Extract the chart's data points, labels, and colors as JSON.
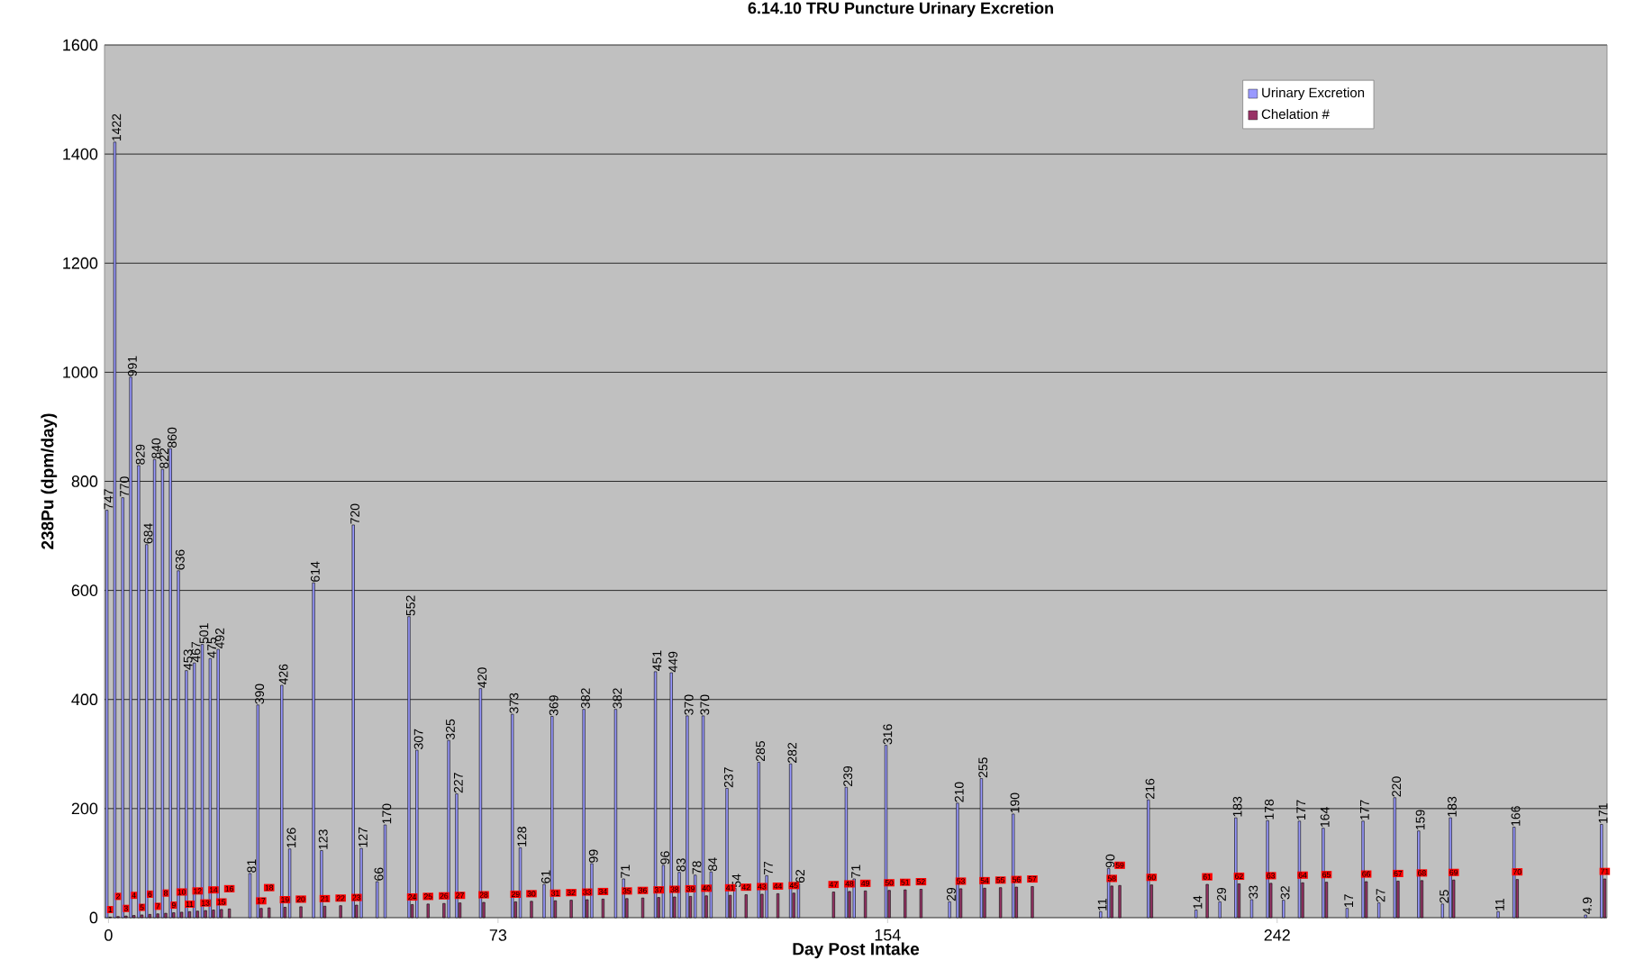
{
  "chart_data": {
    "type": "bar",
    "title": "6.14.10 TRU Puncture Urinary Excretion",
    "xlabel": "Day Post Intake",
    "ylabel": "238Pu (dpm/day)",
    "categories": [
      "0",
      null,
      null,
      null,
      null,
      null,
      null,
      null,
      null,
      null,
      null,
      null,
      null,
      null,
      null,
      null,
      null,
      null,
      null,
      null,
      null,
      null,
      null,
      null,
      null,
      null,
      null,
      null,
      null,
      null,
      null,
      null,
      null,
      null,
      null,
      null,
      null,
      null,
      null,
      null,
      null,
      null,
      null,
      null,
      null,
      null,
      null,
      null,
      null,
      "73",
      null,
      null,
      null,
      null,
      null,
      null,
      null,
      null,
      null,
      null,
      null,
      null,
      null,
      null,
      null,
      null,
      null,
      null,
      null,
      null,
      null,
      null,
      null,
      null,
      null,
      null,
      null,
      null,
      null,
      null,
      null,
      null,
      null,
      null,
      null,
      null,
      null,
      null,
      null,
      null,
      null,
      null,
      null,
      null,
      null,
      null,
      null,
      null,
      "154",
      null,
      null,
      null,
      null,
      null,
      null,
      null,
      null,
      null,
      null,
      null,
      null,
      null,
      null,
      null,
      null,
      null,
      null,
      null,
      null,
      null,
      null,
      null,
      null,
      null,
      null,
      null,
      null,
      null,
      null,
      null,
      null,
      null,
      null,
      null,
      null,
      null,
      null,
      null,
      null,
      null,
      null,
      null,
      null,
      null,
      null,
      null,
      null,
      "242",
      null,
      null,
      null,
      null,
      null,
      null,
      null,
      null,
      null,
      null,
      null,
      null,
      null,
      null,
      null,
      null,
      null,
      null,
      null,
      null,
      null,
      null,
      null,
      null,
      null,
      null,
      null,
      null,
      null,
      null,
      null,
      null,
      null,
      null,
      null,
      null,
      null,
      null,
      null,
      null,
      null
    ],
    "series": [
      {
        "name": "Urinary Excretion",
        "color": "#9999ff",
        "values": [
          747,
          1422,
          770,
          991,
          829,
          684,
          840,
          822,
          860,
          636,
          453,
          467,
          501,
          475,
          492,
          null,
          null,
          null,
          81,
          390,
          null,
          null,
          426,
          126,
          null,
          null,
          614,
          123,
          null,
          null,
          null,
          720,
          127,
          null,
          66,
          170,
          null,
          null,
          552,
          307,
          null,
          null,
          null,
          325,
          227,
          null,
          null,
          420,
          null,
          null,
          null,
          373,
          128,
          null,
          null,
          61,
          369,
          null,
          null,
          null,
          382,
          99,
          null,
          null,
          382,
          71,
          null,
          null,
          null,
          451,
          96,
          449,
          83,
          370,
          78,
          370,
          84,
          null,
          237,
          54,
          null,
          null,
          285,
          77,
          null,
          null,
          282,
          62,
          null,
          null,
          null,
          null,
          null,
          239,
          71,
          null,
          null,
          null,
          316,
          null,
          null,
          null,
          null,
          null,
          null,
          null,
          29,
          210,
          null,
          null,
          255,
          null,
          null,
          null,
          190,
          null,
          null,
          null,
          null,
          null,
          null,
          null,
          null,
          null,
          null,
          11,
          90,
          null,
          null,
          null,
          null,
          216,
          null,
          null,
          null,
          null,
          null,
          14,
          null,
          null,
          29,
          null,
          183,
          null,
          33,
          null,
          178,
          null,
          32,
          null,
          177,
          null,
          null,
          164,
          null,
          null,
          17,
          null,
          177,
          null,
          27,
          null,
          220,
          null,
          null,
          159,
          null,
          null,
          25,
          183,
          null,
          null,
          null,
          null,
          null,
          11,
          null,
          166,
          null,
          null,
          null,
          null,
          null,
          null,
          null,
          null,
          4.9,
          null,
          171
        ]
      },
      {
        "name": "Chelation #",
        "color": "#993366",
        "values": [
          1,
          2,
          3,
          4,
          5,
          6,
          7,
          8,
          9,
          10,
          11,
          12,
          13,
          14,
          15,
          16,
          null,
          null,
          null,
          17,
          18,
          null,
          19,
          null,
          20,
          null,
          null,
          21,
          null,
          22,
          null,
          23,
          null,
          null,
          null,
          null,
          null,
          null,
          24,
          null,
          25,
          null,
          26,
          null,
          27,
          null,
          null,
          28,
          null,
          null,
          null,
          29,
          null,
          30,
          null,
          null,
          31,
          null,
          32,
          null,
          33,
          null,
          34,
          null,
          null,
          35,
          null,
          36,
          null,
          37,
          null,
          38,
          null,
          39,
          null,
          40,
          null,
          null,
          41,
          null,
          42,
          null,
          43,
          null,
          44,
          null,
          45,
          null,
          null,
          null,
          null,
          47,
          null,
          48,
          null,
          49,
          null,
          null,
          50,
          null,
          51,
          null,
          52,
          null,
          null,
          null,
          null,
          53,
          null,
          null,
          54,
          null,
          55,
          null,
          56,
          null,
          57,
          null,
          null,
          null,
          null,
          null,
          null,
          null,
          null,
          null,
          58,
          59,
          null,
          null,
          null,
          60,
          null,
          null,
          null,
          null,
          null,
          null,
          61,
          null,
          null,
          null,
          62,
          null,
          null,
          null,
          63,
          null,
          null,
          null,
          64,
          null,
          null,
          65,
          null,
          null,
          null,
          null,
          66,
          null,
          null,
          null,
          67,
          null,
          null,
          68,
          null,
          null,
          null,
          69,
          null,
          null,
          null,
          null,
          null,
          null,
          null,
          70,
          null,
          null,
          null,
          null,
          null,
          null,
          null,
          null,
          null,
          null,
          71
        ]
      }
    ],
    "ylim": [
      0,
      1600
    ],
    "yticks": [
      0,
      200,
      400,
      600,
      800,
      1000,
      1200,
      1400,
      1600
    ],
    "grid": "y",
    "legend": "top right",
    "data_labels": true
  }
}
